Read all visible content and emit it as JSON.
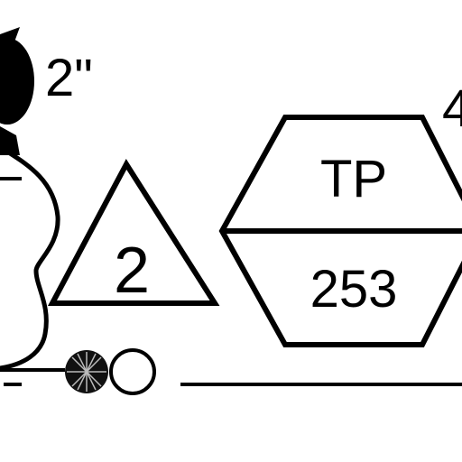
{
  "symbols": {
    "size_label": "2\"",
    "triangle_label": "2",
    "hexagon_top_label": "TP",
    "hexagon_bottom_label": "253",
    "partial_label": "4"
  },
  "colors": {
    "ink": "#000000",
    "background": "#ffffff"
  },
  "icons": {
    "valve_blob": "filled-ellipse",
    "flow_ball": "hatched-ball-icon",
    "open_circle": "open-circle-icon"
  }
}
